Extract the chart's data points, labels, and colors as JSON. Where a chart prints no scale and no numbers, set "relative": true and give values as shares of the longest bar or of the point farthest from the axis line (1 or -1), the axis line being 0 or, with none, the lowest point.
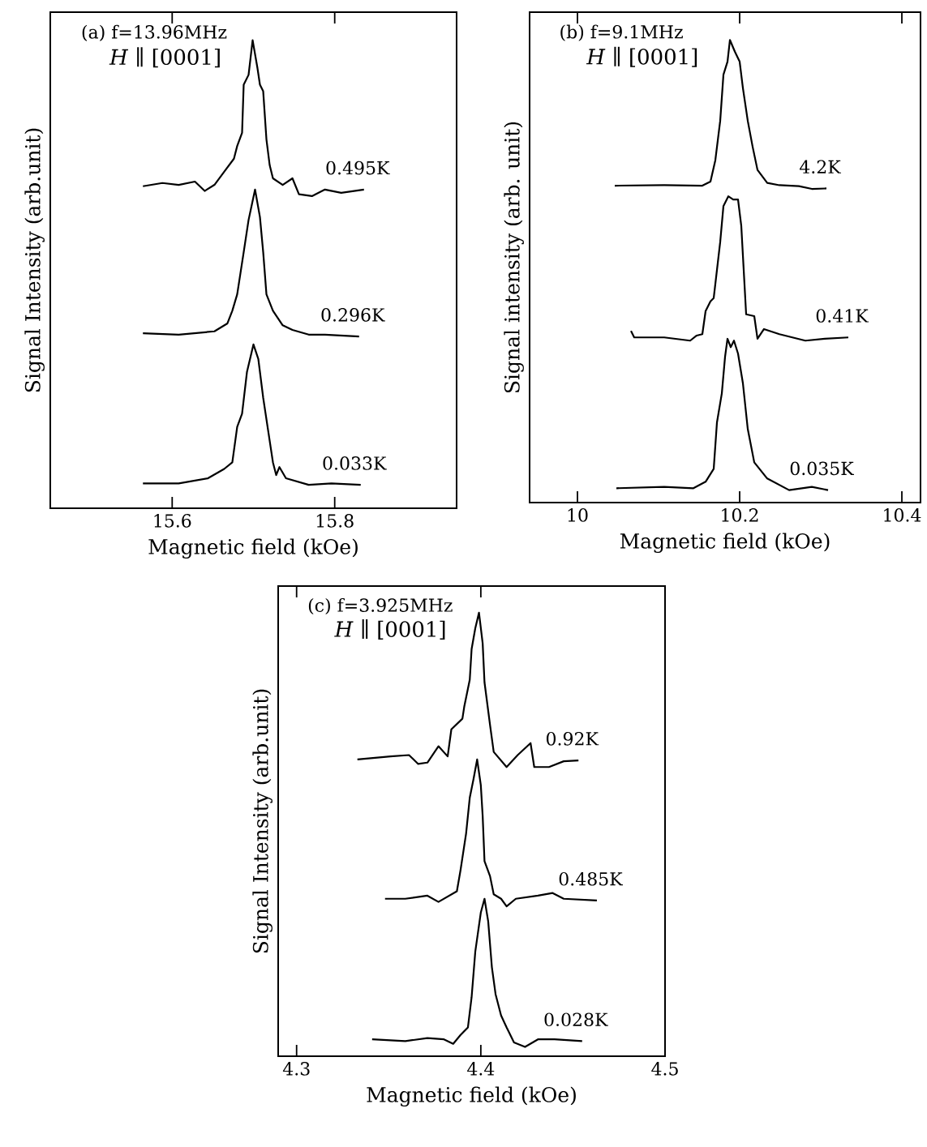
{
  "chart_data": [
    {
      "type": "line",
      "relative": true,
      "xlabel": "Magnetic field (kOe)",
      "ylabel": "Signal  Intensity  (arb.unit)",
      "xlim": [
        15.45,
        15.95
      ],
      "xticks": [
        15.6,
        15.8
      ],
      "annotations": [
        "(a) f=13.96MHz",
        "*H* ∥ [0001]"
      ],
      "series": [
        {
          "name": "0.495K",
          "color": "#000000",
          "x": [
            15.564,
            15.588,
            15.608,
            15.628,
            15.64,
            15.652,
            15.664,
            15.676,
            15.68,
            15.686,
            15.688,
            15.694,
            15.699,
            15.705,
            15.708,
            15.712,
            15.716,
            15.72,
            15.724,
            15.736,
            15.748,
            15.756,
            15.772,
            15.788,
            15.808,
            15.836
          ],
          "values": [
            0.688,
            0.695,
            0.691,
            0.698,
            0.678,
            0.691,
            0.719,
            0.747,
            0.774,
            0.802,
            0.905,
            0.926,
            1,
            0.94,
            0.905,
            0.891,
            0.788,
            0.733,
            0.705,
            0.691,
            0.705,
            0.671,
            0.667,
            0.681,
            0.674,
            0.681
          ]
        },
        {
          "name": "0.296K",
          "color": "#000000",
          "x": [
            15.564,
            15.608,
            15.652,
            15.668,
            15.674,
            15.68,
            15.688,
            15.694,
            15.702,
            15.708,
            15.712,
            15.716,
            15.724,
            15.736,
            15.748,
            15.768,
            15.788,
            15.83
          ],
          "values": [
            0.374,
            0.371,
            0.378,
            0.395,
            0.422,
            0.457,
            0.547,
            0.616,
            0.681,
            0.622,
            0.547,
            0.457,
            0.422,
            0.391,
            0.381,
            0.371,
            0.371,
            0.367
          ]
        },
        {
          "name": "0.033K",
          "color": "#000000",
          "x": [
            15.564,
            15.608,
            15.644,
            15.664,
            15.674,
            15.68,
            15.686,
            15.692,
            15.7,
            15.706,
            15.712,
            15.718,
            15.724,
            15.728,
            15.732,
            15.74,
            15.768,
            15.796,
            15.832
          ],
          "values": [
            0.053,
            0.053,
            0.064,
            0.084,
            0.098,
            0.174,
            0.202,
            0.291,
            0.35,
            0.319,
            0.236,
            0.167,
            0.098,
            0.071,
            0.088,
            0.064,
            0.05,
            0.053,
            0.05
          ]
        }
      ]
    },
    {
      "type": "line",
      "relative": true,
      "xlabel": "Magnetic field (kOe)",
      "ylabel": "Signal  intensity  (arb. unit)",
      "xlim": [
        9.941,
        10.423
      ],
      "xticks": [
        10,
        10.2,
        10.4
      ],
      "annotations": [
        "(b) f=9.1MHz",
        "*H* ∥ [0001]"
      ],
      "series": [
        {
          "name": "4.2K",
          "color": "#000000",
          "x": [
            10.046,
            10.107,
            10.154,
            10.164,
            10.17,
            10.176,
            10.18,
            10.185,
            10.188,
            10.194,
            10.2,
            10.204,
            10.21,
            10.216,
            10.222,
            10.234,
            10.249,
            10.273,
            10.289,
            10.307
          ],
          "values": [
            0.685,
            0.686,
            0.685,
            0.694,
            0.74,
            0.825,
            0.925,
            0.953,
            1,
            0.975,
            0.953,
            0.896,
            0.825,
            0.769,
            0.719,
            0.691,
            0.686,
            0.684,
            0.678,
            0.679
          ]
        },
        {
          "name": "0.41K",
          "color": "#000000",
          "x": [
            10.066,
            10.07,
            10.107,
            10.139,
            10.147,
            10.154,
            10.158,
            10.164,
            10.168,
            10.176,
            10.18,
            10.186,
            10.192,
            10.198,
            10.202,
            10.208,
            10.218,
            10.222,
            10.23,
            10.249,
            10.281,
            10.305,
            10.334
          ],
          "values": [
            0.371,
            0.357,
            0.357,
            0.35,
            0.361,
            0.364,
            0.414,
            0.435,
            0.442,
            0.563,
            0.641,
            0.662,
            0.655,
            0.655,
            0.598,
            0.407,
            0.403,
            0.354,
            0.375,
            0.364,
            0.35,
            0.354,
            0.357
          ]
        },
        {
          "name": "0.035K",
          "color": "#000000",
          "x": [
            10.048,
            10.107,
            10.143,
            10.158,
            10.168,
            10.172,
            10.178,
            10.182,
            10.185,
            10.189,
            10.193,
            10.198,
            10.204,
            10.21,
            10.218,
            10.234,
            10.261,
            10.289,
            10.309
          ],
          "values": [
            0.031,
            0.034,
            0.031,
            0.045,
            0.073,
            0.173,
            0.236,
            0.315,
            0.354,
            0.336,
            0.35,
            0.322,
            0.258,
            0.159,
            0.087,
            0.052,
            0.027,
            0.034,
            0.027
          ]
        }
      ]
    },
    {
      "type": "line",
      "relative": true,
      "xlabel": "Magnetic field (kOe)",
      "ylabel": "Signal  Intensity  (arb.unit)",
      "xlim": [
        4.29,
        4.5
      ],
      "xticks": [
        4.3,
        4.4,
        4.5
      ],
      "annotations": [
        "(c) f=3.925MHz",
        "*H* ∥ [0001]"
      ],
      "series": [
        {
          "name": "0.92K",
          "color": "#000000",
          "x": [
            4.333,
            4.351,
            4.361,
            4.366,
            4.371,
            4.377,
            4.382,
            4.384,
            4.39,
            4.391,
            4.394,
            4.395,
            4.397,
            4.399,
            4.401,
            4.402,
            4.405,
            4.407,
            4.414,
            4.42,
            4.427,
            4.429,
            4.437,
            4.445,
            4.453
          ],
          "values": [
            0.669,
            0.676,
            0.679,
            0.659,
            0.662,
            0.699,
            0.676,
            0.737,
            0.761,
            0.788,
            0.849,
            0.918,
            0.965,
            1,
            0.931,
            0.843,
            0.747,
            0.686,
            0.652,
            0.679,
            0.706,
            0.652,
            0.652,
            0.665,
            0.667
          ]
        },
        {
          "name": "0.485K",
          "color": "#000000",
          "x": [
            4.348,
            4.359,
            4.371,
            4.377,
            4.387,
            4.389,
            4.392,
            4.394,
            4.396,
            4.398,
            4.4,
            4.401,
            4.402,
            4.405,
            4.407,
            4.411,
            4.414,
            4.419,
            4.431,
            4.439,
            4.445,
            4.463
          ],
          "values": [
            0.355,
            0.355,
            0.362,
            0.348,
            0.372,
            0.42,
            0.502,
            0.583,
            0.624,
            0.669,
            0.611,
            0.542,
            0.44,
            0.406,
            0.365,
            0.355,
            0.338,
            0.355,
            0.362,
            0.368,
            0.355,
            0.351
          ]
        },
        {
          "name": "0.028K",
          "color": "#000000",
          "x": [
            4.341,
            4.359,
            4.371,
            4.38,
            4.385,
            4.389,
            4.393,
            4.395,
            4.397,
            4.4,
            4.402,
            4.404,
            4.406,
            4.408,
            4.411,
            4.414,
            4.418,
            4.424,
            4.431,
            4.44,
            4.455
          ],
          "values": [
            0.038,
            0.034,
            0.041,
            0.038,
            0.028,
            0.048,
            0.065,
            0.133,
            0.236,
            0.324,
            0.355,
            0.304,
            0.201,
            0.14,
            0.092,
            0.065,
            0.031,
            0.021,
            0.038,
            0.038,
            0.034
          ]
        }
      ]
    }
  ]
}
